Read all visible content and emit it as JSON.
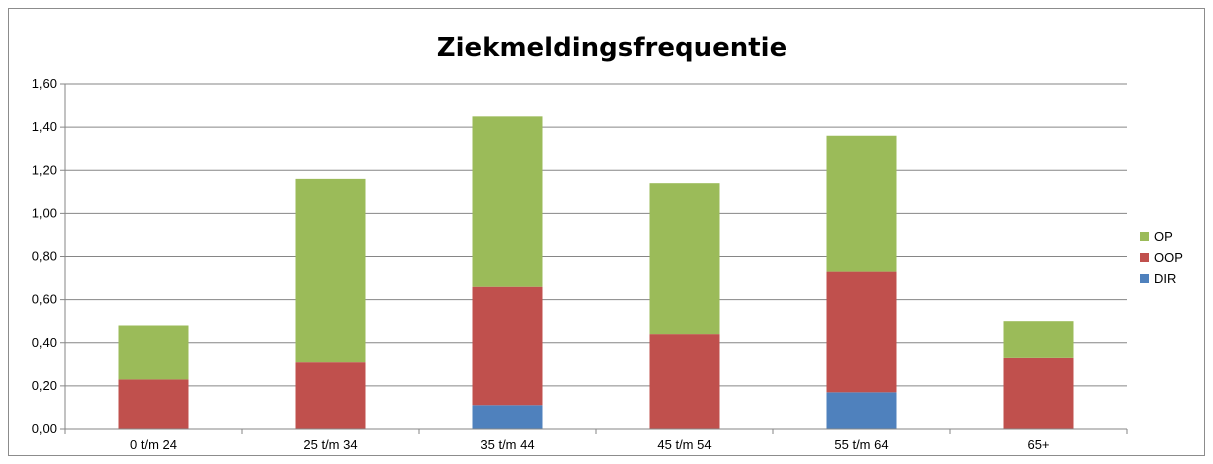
{
  "chart_data": {
    "type": "bar",
    "stacked": true,
    "title": "Ziekmeldingsfrequentie",
    "xlabel": "",
    "ylabel": "",
    "categories": [
      "0 t/m 24",
      "25 t/m 34",
      "35 t/m 44",
      "45 t/m 54",
      "55 t/m 64",
      "65+"
    ],
    "series": [
      {
        "name": "DIR",
        "color": "#4f81bd",
        "values": [
          0.0,
          0.0,
          0.11,
          0.0,
          0.17,
          0.0
        ]
      },
      {
        "name": "OOP",
        "color": "#c0504d",
        "values": [
          0.23,
          0.31,
          0.55,
          0.44,
          0.56,
          0.33
        ]
      },
      {
        "name": "OP",
        "color": "#9bbb59",
        "values": [
          0.25,
          0.85,
          0.79,
          0.7,
          0.63,
          0.17
        ]
      }
    ],
    "ylim": [
      0,
      1.6
    ],
    "yticks": [
      "0,00",
      "0,20",
      "0,40",
      "0,60",
      "0,80",
      "1,00",
      "1,20",
      "1,40",
      "1,60"
    ],
    "ytick_values": [
      0,
      0.2,
      0.4,
      0.6,
      0.8,
      1.0,
      1.2,
      1.4,
      1.6
    ],
    "grid": true,
    "legend_position": "right",
    "legend_order": [
      "OP",
      "OOP",
      "DIR"
    ]
  }
}
